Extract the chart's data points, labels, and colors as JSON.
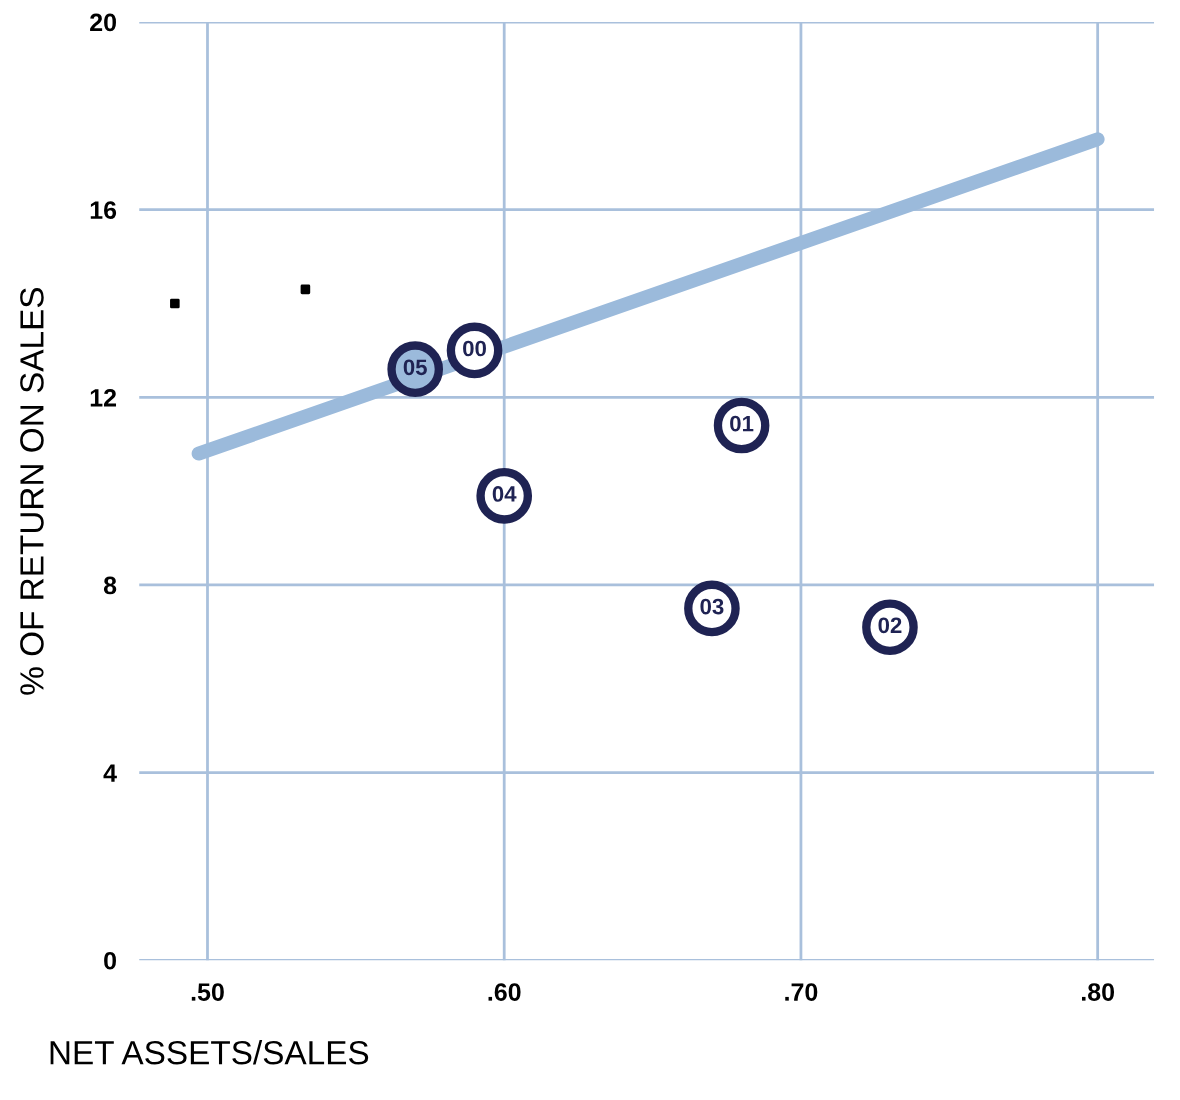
{
  "chart_data": {
    "type": "scatter",
    "xlabel": "NET ASSETS/SALES",
    "ylabel": "% OF RETURN ON SALES",
    "xlim": [
      0.477,
      0.819
    ],
    "ylim": [
      0,
      20
    ],
    "xticks": [
      {
        "value": 0.5,
        "label": ".50"
      },
      {
        "value": 0.6,
        "label": ".60"
      },
      {
        "value": 0.7,
        "label": ".70"
      },
      {
        "value": 0.8,
        "label": ".80"
      }
    ],
    "yticks": [
      0,
      4,
      8,
      12,
      16,
      20
    ],
    "grid": true,
    "series": [
      {
        "type": "line",
        "color": "#9bbadb",
        "x": [
          0.497,
          0.8
        ],
        "values": [
          10.8,
          17.5
        ],
        "marker": "none",
        "line_style": "solid"
      },
      {
        "color": "#1f2353",
        "marker": "circle",
        "x": [
          0.59,
          0.68,
          0.73,
          0.67,
          0.6,
          0.57
        ],
        "values": [
          13.0,
          11.4,
          7.1,
          7.5,
          9.9,
          12.6
        ],
        "colors": [
          "#ffffff",
          "#ffffff",
          "#ffffff",
          "#ffffff",
          "#ffffff",
          "#9bbadb"
        ]
      },
      {
        "color": "#000000",
        "marker": "square",
        "x": [
          0.489,
          0.533
        ],
        "values": [
          14.0,
          14.3
        ]
      }
    ],
    "annotations": [
      {
        "text": "00",
        "x": 0.59,
        "y": 13.0
      },
      {
        "text": "01",
        "x": 0.68,
        "y": 11.4
      },
      {
        "text": "02",
        "x": 0.73,
        "y": 7.1
      },
      {
        "text": "03",
        "x": 0.67,
        "y": 7.5
      },
      {
        "text": "04",
        "x": 0.6,
        "y": 9.9
      },
      {
        "text": "05",
        "x": 0.57,
        "y": 12.6
      }
    ]
  }
}
